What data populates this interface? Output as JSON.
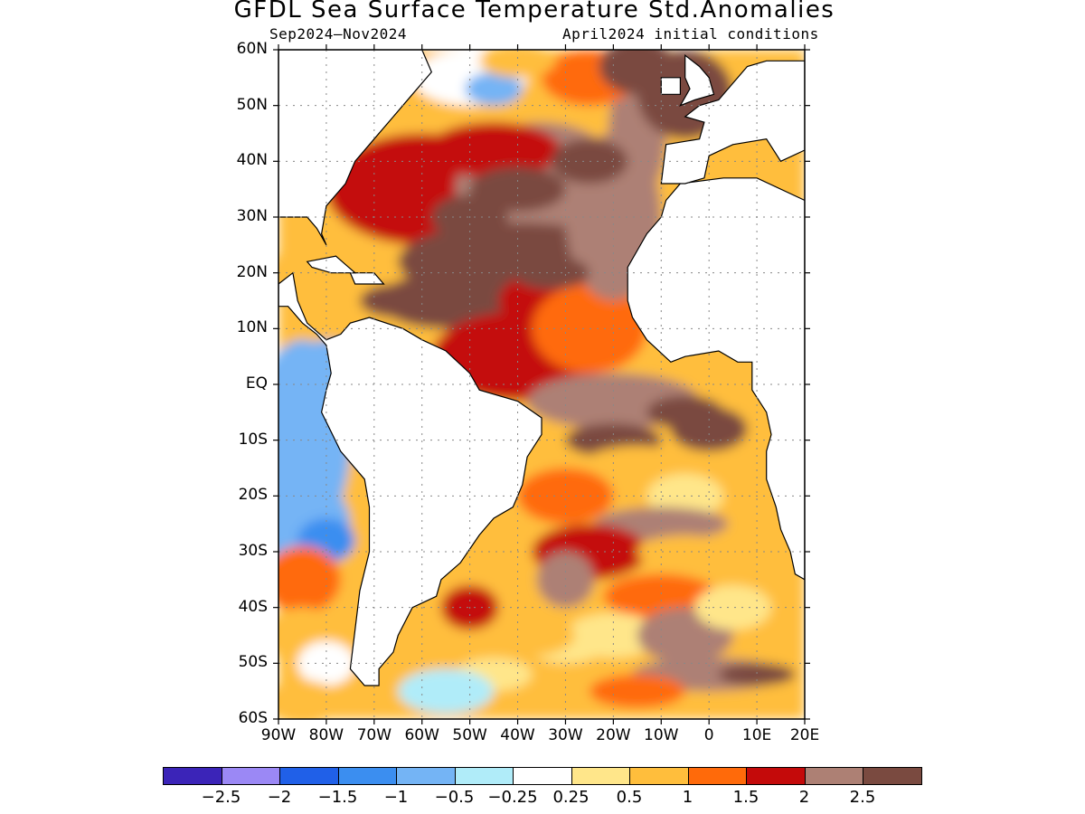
{
  "title": "GFDL Sea Surface Temperature Std.Anomalies",
  "period": "Sep2024–Nov2024",
  "init": "April2024 initial conditions",
  "lat_labels": [
    "60N",
    "50N",
    "40N",
    "30N",
    "20N",
    "10N",
    "EQ",
    "10S",
    "20S",
    "30S",
    "40S",
    "50S",
    "60S"
  ],
  "lon_labels": [
    "90W",
    "80W",
    "70W",
    "60W",
    "50W",
    "40W",
    "30W",
    "20W",
    "10W",
    "0",
    "10E",
    "20E"
  ],
  "colorbar": {
    "colors": [
      "#3b24b8",
      "#9b88f5",
      "#2060e8",
      "#3b8ef0",
      "#74b4f5",
      "#b0ecf9",
      "#ffffff",
      "#ffe68a",
      "#ffbe3c",
      "#ff6a0a",
      "#c40a0a",
      "#ad8074",
      "#7a4a40"
    ],
    "labels": [
      "−2.5",
      "−2",
      "−1.5",
      "−1",
      "−0.5",
      "−0.25",
      "0.25",
      "0.5",
      "1",
      "1.5",
      "2",
      "2.5"
    ]
  },
  "chart_data": {
    "type": "heatmap",
    "variable": "Sea Surface Temperature Std.Anomalies",
    "region": {
      "lon_range": [
        -90,
        20
      ],
      "lat_range": [
        -60,
        60
      ]
    },
    "grid": true,
    "levels": [
      -2.5,
      -2,
      -1.5,
      -1,
      -0.5,
      -0.25,
      0.25,
      0.5,
      1,
      1.5,
      2,
      2.5
    ]
  }
}
